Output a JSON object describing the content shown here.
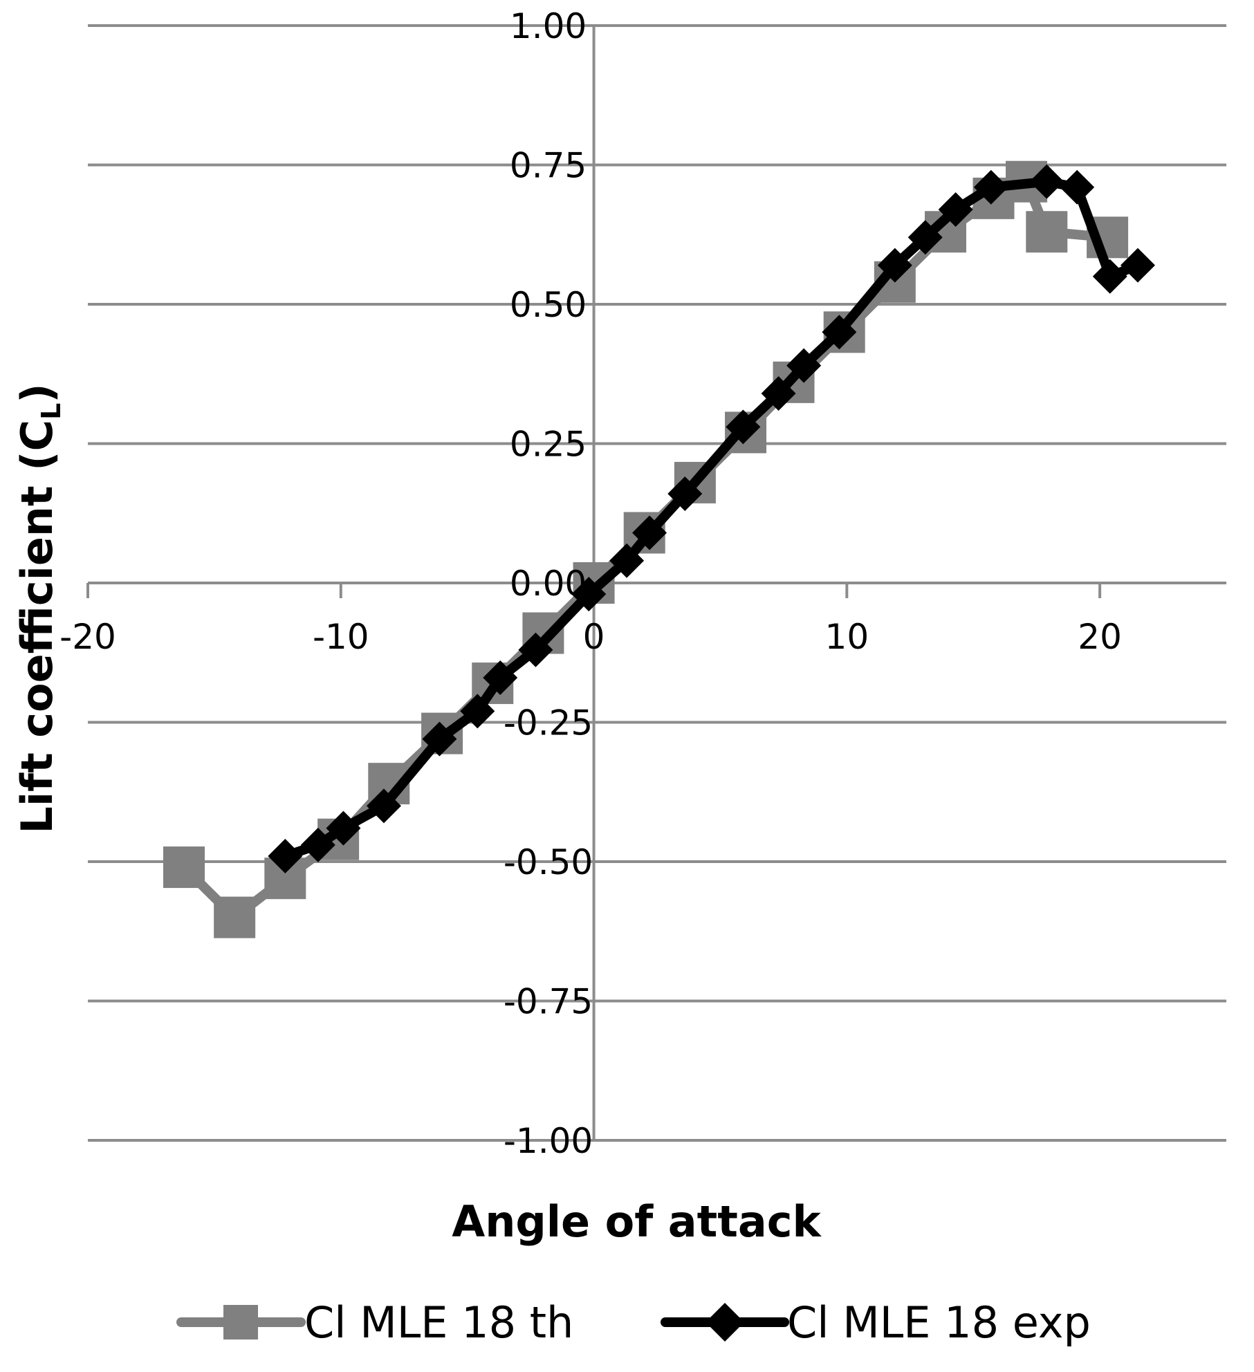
{
  "chart_data": {
    "type": "line",
    "title": "",
    "xlabel": "Angle of attack",
    "ylabel": "Lift coefficient (C",
    "ylabel_subscript": "L",
    "ylabel_close": ")",
    "xlim": [
      -20,
      25
    ],
    "ylim": [
      -1.0,
      1.0
    ],
    "x_ticks": [
      -20,
      -10,
      0,
      10,
      20
    ],
    "x_tick_labels": [
      "-20",
      "-10",
      "0",
      "10",
      "20"
    ],
    "y_ticks": [
      -1.0,
      -0.75,
      -0.5,
      -0.25,
      0.0,
      0.25,
      0.5,
      0.75,
      1.0
    ],
    "y_tick_labels": [
      "-1.00",
      "-0.75",
      "-0.50",
      "-0.25",
      "0.00",
      "0.25",
      "0.50",
      "0.75",
      "1.00"
    ],
    "grid": {
      "horizontal": true,
      "vertical": false
    },
    "legend_position": "bottom",
    "series": [
      {
        "name": "Cl MLE 18 th",
        "color": "#808080",
        "marker": "square",
        "points": [
          [
            -16.2,
            -0.51
          ],
          [
            -14.2,
            -0.6
          ],
          [
            -12.2,
            -0.53
          ],
          [
            -10.1,
            -0.46
          ],
          [
            -8.1,
            -0.36
          ],
          [
            -6.0,
            -0.27
          ],
          [
            -4.0,
            -0.18
          ],
          [
            -2.0,
            -0.09
          ],
          [
            0.0,
            -0.0
          ],
          [
            2.0,
            0.09
          ],
          [
            4.0,
            0.18
          ],
          [
            6.0,
            0.27
          ],
          [
            7.9,
            0.36
          ],
          [
            9.9,
            0.45
          ],
          [
            11.9,
            0.54
          ],
          [
            13.9,
            0.63
          ],
          [
            15.8,
            0.69
          ],
          [
            17.1,
            0.72
          ],
          [
            17.9,
            0.63
          ],
          [
            20.3,
            0.62
          ]
        ]
      },
      {
        "name": "Cl MLE 18 exp",
        "color": "#000000",
        "marker": "diamond",
        "points": [
          [
            -12.2,
            -0.49
          ],
          [
            -10.9,
            -0.47
          ],
          [
            -9.9,
            -0.44
          ],
          [
            -8.3,
            -0.4
          ],
          [
            -6.1,
            -0.28
          ],
          [
            -4.6,
            -0.23
          ],
          [
            -3.7,
            -0.17
          ],
          [
            -2.3,
            -0.12
          ],
          [
            -0.2,
            -0.02
          ],
          [
            1.3,
            0.04
          ],
          [
            2.2,
            0.09
          ],
          [
            3.6,
            0.16
          ],
          [
            5.9,
            0.28
          ],
          [
            7.3,
            0.34
          ],
          [
            8.3,
            0.39
          ],
          [
            9.7,
            0.45
          ],
          [
            11.9,
            0.57
          ],
          [
            13.1,
            0.62
          ],
          [
            14.3,
            0.67
          ],
          [
            15.7,
            0.71
          ],
          [
            17.9,
            0.72
          ],
          [
            19.1,
            0.71
          ],
          [
            20.4,
            0.55
          ],
          [
            21.5,
            0.57
          ]
        ]
      }
    ]
  }
}
